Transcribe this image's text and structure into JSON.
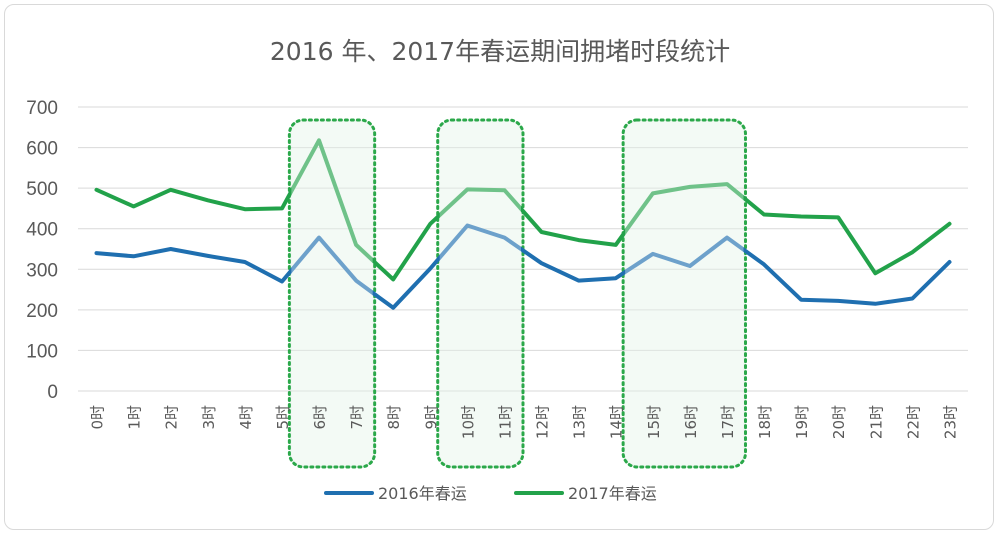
{
  "chart_data": {
    "type": "line",
    "title": "2016 年、2017年春运期间拥堵时段统计",
    "categories": [
      "0时",
      "1时",
      "2时",
      "3时",
      "4时",
      "5时",
      "6时",
      "7时",
      "8时",
      "9时",
      "10时",
      "11时",
      "12时",
      "13时",
      "14时",
      "15时",
      "16时",
      "17时",
      "18时",
      "19时",
      "20时",
      "21时",
      "22时",
      "23时"
    ],
    "series": [
      {
        "name": "2016年春运",
        "color": "#1f6fb0",
        "values": [
          340,
          332,
          350,
          333,
          318,
          270,
          378,
          272,
          205,
          302,
          408,
          378,
          315,
          272,
          278,
          338,
          308,
          378,
          312,
          225,
          222,
          215,
          228,
          318
        ]
      },
      {
        "name": "2017年春运",
        "color": "#22a24a",
        "values": [
          496,
          455,
          496,
          470,
          448,
          450,
          618,
          360,
          275,
          412,
          497,
          495,
          392,
          372,
          360,
          487,
          503,
          510,
          435,
          430,
          428,
          290,
          342,
          412
        ]
      }
    ],
    "yticks": [
      0,
      100,
      200,
      300,
      400,
      500,
      600,
      700
    ],
    "ylim": [
      0,
      700
    ],
    "grid": true,
    "legend_position": "bottom",
    "highlight_ranges": [
      [
        5,
        7
      ],
      [
        9,
        11
      ],
      [
        14,
        17
      ]
    ]
  }
}
